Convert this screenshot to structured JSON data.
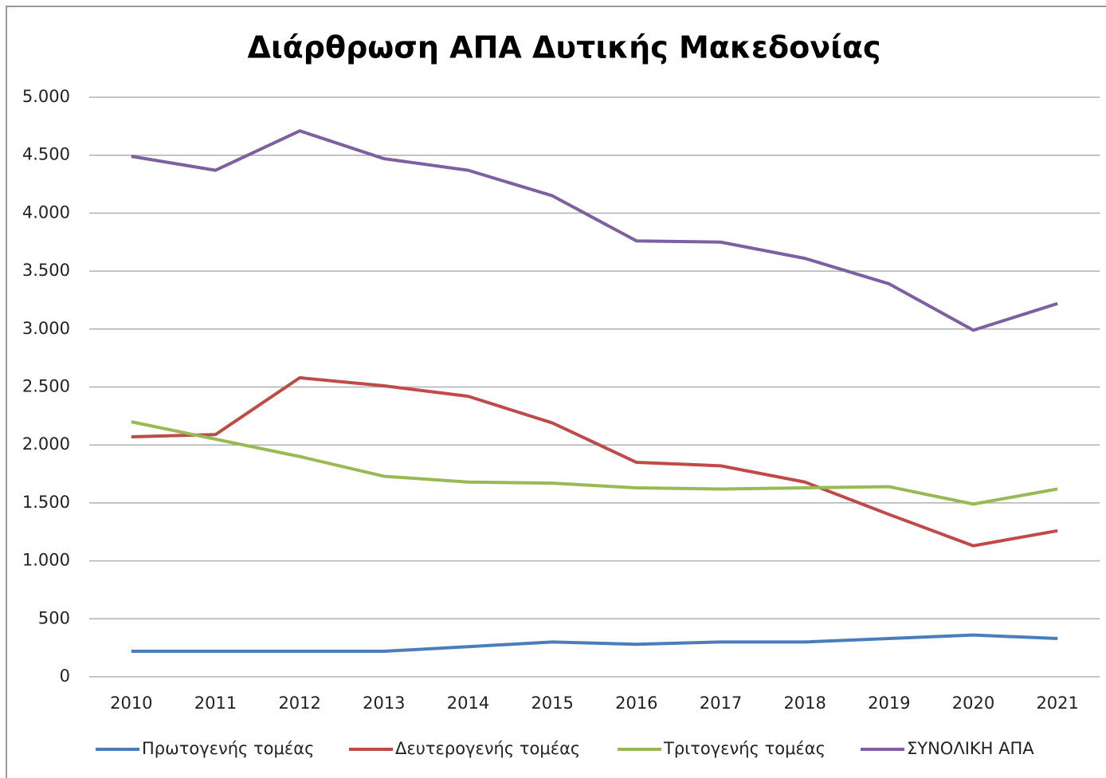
{
  "chart_data": {
    "type": "line",
    "title": "Διάρθρωση ΑΠΑ Δυτικής Μακεδονίας",
    "categories": [
      "2010",
      "2011",
      "2012",
      "2013",
      "2014",
      "2015",
      "2016",
      "2017",
      "2018",
      "2019",
      "2020",
      "2021"
    ],
    "series": [
      {
        "name": "Πρωτογενής τομέας",
        "color": "#4a7ebb",
        "values": [
          220,
          220,
          220,
          220,
          260,
          300,
          280,
          300,
          300,
          330,
          360,
          330
        ]
      },
      {
        "name": "Δευτερογενής τομέας",
        "color": "#be4b48",
        "values": [
          2070,
          2090,
          2580,
          2510,
          2420,
          2190,
          1850,
          1820,
          1680,
          1400,
          1130,
          1260
        ]
      },
      {
        "name": "Τριτογενής τομέας",
        "color": "#98b954",
        "values": [
          2200,
          2050,
          1900,
          1730,
          1680,
          1670,
          1630,
          1620,
          1630,
          1640,
          1490,
          1620
        ]
      },
      {
        "name": "ΣΥΝΟΛΙΚΗ ΑΠΑ",
        "color": "#7d60a0",
        "values": [
          4490,
          4370,
          4710,
          4470,
          4370,
          4150,
          3760,
          3750,
          3610,
          3390,
          2990,
          3220
        ]
      }
    ],
    "ylim": [
      0,
      5000
    ],
    "yticks": [
      0,
      500,
      {
        "value": 1000,
        "label": "1.000"
      },
      {
        "value": 1500,
        "label": "1.500"
      },
      {
        "value": 2000,
        "label": "2.000"
      },
      {
        "value": 2500,
        "label": "2.500"
      },
      {
        "value": 3000,
        "label": "3.000"
      },
      {
        "value": 3500,
        "label": "3.500"
      },
      {
        "value": 4000,
        "label": "4.000"
      },
      {
        "value": 4500,
        "label": "4.500"
      },
      {
        "value": 5000,
        "label": "5.000"
      }
    ],
    "grid": true,
    "legend": "bottom"
  }
}
